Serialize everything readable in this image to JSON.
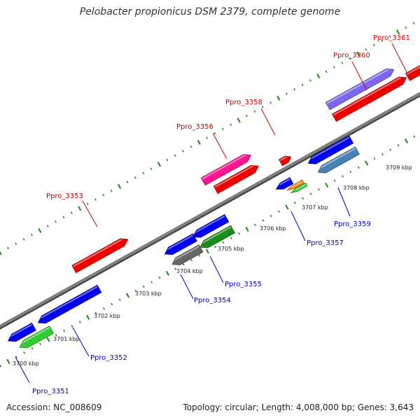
{
  "title": "Pelobacter propionicus DSM 2379, complete genome",
  "footer": {
    "accession": "Accession: NC_008609",
    "topology": "Topology: circular; Length: 4,008,000 bp; Genes: 3,643"
  },
  "colors": {
    "background": "#ffffff",
    "backbone": "#808080",
    "tick": "#2e8b2e",
    "label_forward": "#cc0000",
    "label_reverse": "#0000cc"
  },
  "scale": {
    "tick_labels": [
      "3700 kbp",
      "3701 kbp",
      "3702 kbp",
      "3703 kbp",
      "3704 kbp",
      "3705 kbp",
      "3706 kbp",
      "3707 kbp",
      "3708 kbp",
      "3709 kbp"
    ]
  },
  "genes": [
    {
      "name": "Ppro_3351",
      "label": "Ppro_3351",
      "strand": "reverse",
      "color": "#33cc33",
      "labeled": true
    },
    {
      "name": "Ppro_3351b",
      "label": "",
      "strand": "reverse",
      "color": "#0000ee",
      "labeled": false
    },
    {
      "name": "Ppro_3352",
      "label": "Ppro_3352",
      "strand": "reverse",
      "color": "#0000ee",
      "labeled": true
    },
    {
      "name": "Ppro_3353",
      "label": "Ppro_3353",
      "strand": "forward",
      "color": "#ee0000",
      "labeled": true
    },
    {
      "name": "Ppro_3354",
      "label": "Ppro_3354",
      "strand": "reverse",
      "color": "#666666",
      "labeled": true
    },
    {
      "name": "Ppro_3354b",
      "label": "",
      "strand": "reverse",
      "color": "#0000ee",
      "labeled": false
    },
    {
      "name": "Ppro_3355",
      "label": "Ppro_3355",
      "strand": "reverse",
      "color": "#1a8c1a",
      "labeled": true
    },
    {
      "name": "Ppro_3355b",
      "label": "",
      "strand": "reverse",
      "color": "#0000ee",
      "labeled": false
    },
    {
      "name": "Ppro_3356",
      "label": "Ppro_3356",
      "strand": "forward",
      "color": "#ee0000",
      "labeled": true
    },
    {
      "name": "Ppro_3356b",
      "label": "",
      "strand": "forward",
      "color": "#ff1493",
      "labeled": false
    },
    {
      "name": "Ppro_3357",
      "label": "Ppro_3357",
      "strand": "reverse",
      "color": "#33cc33",
      "labeled": true
    },
    {
      "name": "Ppro_3357b",
      "label": "",
      "strand": "reverse",
      "color": "#ff8c00",
      "labeled": false
    },
    {
      "name": "Ppro_3357c",
      "label": "",
      "strand": "reverse",
      "color": "#0000ee",
      "labeled": false
    },
    {
      "name": "Ppro_3358",
      "label": "Ppro_3358",
      "strand": "forward",
      "color": "#ee0000",
      "labeled": true
    },
    {
      "name": "Ppro_3359",
      "label": "Ppro_3359",
      "strand": "reverse",
      "color": "#4682b4",
      "labeled": true
    },
    {
      "name": "Ppro_3359b",
      "label": "",
      "strand": "reverse",
      "color": "#0000ee",
      "labeled": false
    },
    {
      "name": "Ppro_3360",
      "label": "Ppro_3360",
      "strand": "forward",
      "color": "#ee0000",
      "labeled": true
    },
    {
      "name": "Ppro_3360b",
      "label": "",
      "strand": "forward",
      "color": "#7b68ee",
      "labeled": false
    },
    {
      "name": "Ppro_3361",
      "label": "Ppro_3361",
      "strand": "forward",
      "color": "#ee0000",
      "labeled": true
    }
  ]
}
